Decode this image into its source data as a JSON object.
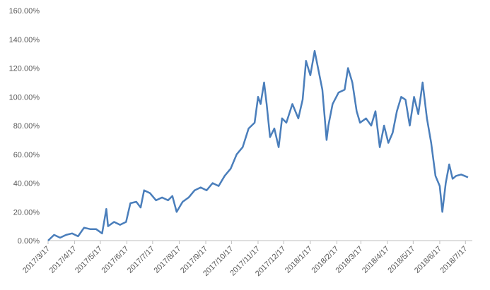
{
  "chart_data": {
    "type": "line",
    "x": [
      "2017/3/17",
      "2017/3/24",
      "2017/3/31",
      "2017/4/7",
      "2017/4/14",
      "2017/4/21",
      "2017/4/28",
      "2017/5/5",
      "2017/5/12",
      "2017/5/19",
      "2017/5/24",
      "2017/5/26",
      "2017/6/2",
      "2017/6/9",
      "2017/6/16",
      "2017/6/21",
      "2017/6/28",
      "2017/7/3",
      "2017/7/7",
      "2017/7/14",
      "2017/7/21",
      "2017/7/28",
      "2017/8/4",
      "2017/8/9",
      "2017/8/14",
      "2017/8/21",
      "2017/8/28",
      "2017/9/4",
      "2017/9/11",
      "2017/9/18",
      "2017/9/25",
      "2017/10/2",
      "2017/10/9",
      "2017/10/16",
      "2017/10/23",
      "2017/10/30",
      "2017/11/6",
      "2017/11/13",
      "2017/11/17",
      "2017/11/20",
      "2017/11/24",
      "2017/11/27",
      "2017/12/1",
      "2017/12/6",
      "2017/12/11",
      "2017/12/15",
      "2017/12/20",
      "2017/12/27",
      "2018/1/3",
      "2018/1/8",
      "2018/1/12",
      "2018/1/17",
      "2018/1/22",
      "2018/1/26",
      "2018/1/31",
      "2018/2/5",
      "2018/2/7",
      "2018/2/12",
      "2018/2/19",
      "2018/2/26",
      "2018/3/2",
      "2018/3/7",
      "2018/3/12",
      "2018/3/16",
      "2018/3/23",
      "2018/3/29",
      "2018/4/3",
      "2018/4/8",
      "2018/4/13",
      "2018/4/18",
      "2018/4/23",
      "2018/4/28",
      "2018/5/3",
      "2018/5/8",
      "2018/5/13",
      "2018/5/18",
      "2018/5/23",
      "2018/5/28",
      "2018/6/2",
      "2018/6/7",
      "2018/6/12",
      "2018/6/17",
      "2018/6/20",
      "2018/6/24",
      "2018/6/28",
      "2018/7/2",
      "2018/7/6",
      "2018/7/12",
      "2018/7/20"
    ],
    "series": [
      {
        "color": "#4a7ebb",
        "values": [
          0,
          4,
          2,
          4,
          5,
          3,
          9,
          8,
          8,
          5,
          22,
          10,
          13,
          11,
          13,
          26,
          27,
          23,
          35,
          33,
          28,
          30,
          28,
          31,
          20,
          27,
          30,
          35,
          37,
          35,
          40,
          38,
          45,
          50,
          60,
          65,
          78,
          82,
          100,
          95,
          110,
          95,
          72,
          78,
          65,
          85,
          82,
          95,
          85,
          98,
          125,
          115,
          132,
          120,
          105,
          70,
          80,
          95,
          103,
          105,
          120,
          110,
          90,
          82,
          85,
          80,
          90,
          65,
          80,
          68,
          75,
          90,
          100,
          98,
          80,
          100,
          88,
          110,
          85,
          68,
          45,
          38,
          20,
          40,
          53,
          43,
          45,
          46,
          44
        ]
      }
    ],
    "xlim": [
      "2017/3/17",
      "2018/7/25"
    ],
    "xticks": [
      "2017/3/17",
      "2017/4/17",
      "2017/5/17",
      "2017/6/17",
      "2017/7/17",
      "2017/8/17",
      "2017/9/17",
      "2017/10/17",
      "2017/11/17",
      "2017/12/17",
      "2018/1/17",
      "2018/2/17",
      "2018/3/17",
      "2018/4/17",
      "2018/5/17",
      "2018/6/17",
      "2018/7/17"
    ],
    "ylim": [
      0,
      160
    ],
    "yticks": [
      {
        "value": 0,
        "label": "0.00%"
      },
      {
        "value": 20,
        "label": "20.00%"
      },
      {
        "value": 40,
        "label": "40.00%"
      },
      {
        "value": 60,
        "label": "60.00%"
      },
      {
        "value": 80,
        "label": "80.00%"
      },
      {
        "value": 100,
        "label": "100.00%"
      },
      {
        "value": 120,
        "label": "120.00%"
      },
      {
        "value": 140,
        "label": "140.00%"
      },
      {
        "value": 160,
        "label": "160.00%"
      }
    ]
  }
}
